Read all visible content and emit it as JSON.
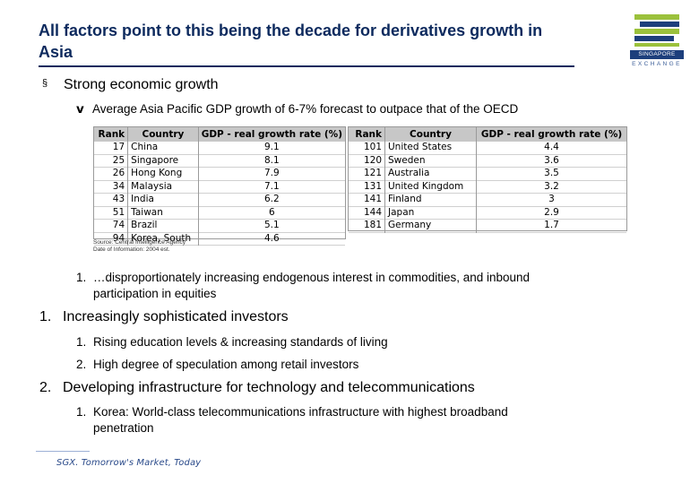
{
  "title": "All factors point to this being the decade for derivatives growth in Asia",
  "logo": {
    "name": "SINGAPORE",
    "sub": "EXCHANGE"
  },
  "bullet1": {
    "symbol": "§",
    "text": "Strong economic growth"
  },
  "bullet2": {
    "symbol": "v",
    "text": "Average Asia Pacific GDP growth of 6-7% forecast to outpace that of the OECD"
  },
  "table_left": {
    "headers": [
      "Rank",
      "Country",
      "GDP - real growth rate (%)"
    ],
    "rows": [
      [
        "17",
        "China",
        "9.1"
      ],
      [
        "25",
        "Singapore",
        "8.1"
      ],
      [
        "26",
        "Hong Kong",
        "7.9"
      ],
      [
        "34",
        "Malaysia",
        "7.1"
      ],
      [
        "43",
        "India",
        "6.2"
      ],
      [
        "51",
        "Taiwan",
        "6"
      ],
      [
        "74",
        "Brazil",
        "5.1"
      ],
      [
        "94",
        "Korea, South",
        "4.6"
      ]
    ]
  },
  "table_right": {
    "headers": [
      "Rank",
      "Country",
      "GDP - real growth rate (%)"
    ],
    "rows": [
      [
        "101",
        "United States",
        "4.4"
      ],
      [
        "120",
        "Sweden",
        "3.6"
      ],
      [
        "121",
        "Australia",
        "3.5"
      ],
      [
        "131",
        "United Kingdom",
        "3.2"
      ],
      [
        "141",
        "Finland",
        "3"
      ],
      [
        "144",
        "Japan",
        "2.9"
      ],
      [
        "181",
        "Germany",
        "1.7"
      ]
    ]
  },
  "source": {
    "line1": "Source: Central Intelligence Agency",
    "line2": "Date of Information: 2004 est."
  },
  "items": [
    {
      "num": "1.",
      "text": "…disproportionately increasing endogenous interest in commodities, and inbound",
      "cont": "participation in equities"
    },
    {
      "num": "1.",
      "text": "Increasingly sophisticated investors"
    },
    {
      "num": "1.",
      "text": "Rising education levels & increasing standards of living"
    },
    {
      "num": "2.",
      "text": "High degree of speculation among retail investors"
    },
    {
      "num": "2.",
      "text": "Developing infrastructure for technology and telecommunications"
    },
    {
      "num": "1.",
      "text": "Korea: World-class telecommunications infrastructure with highest broadband",
      "cont": "penetration"
    }
  ],
  "footer": "SGX. Tomorrow's Market, Today",
  "colors": {
    "title": "#0d2a5e",
    "header_bg": "#c7c7c7",
    "logo_green": "#9bc13c",
    "logo_navy": "#1d3f7c"
  }
}
